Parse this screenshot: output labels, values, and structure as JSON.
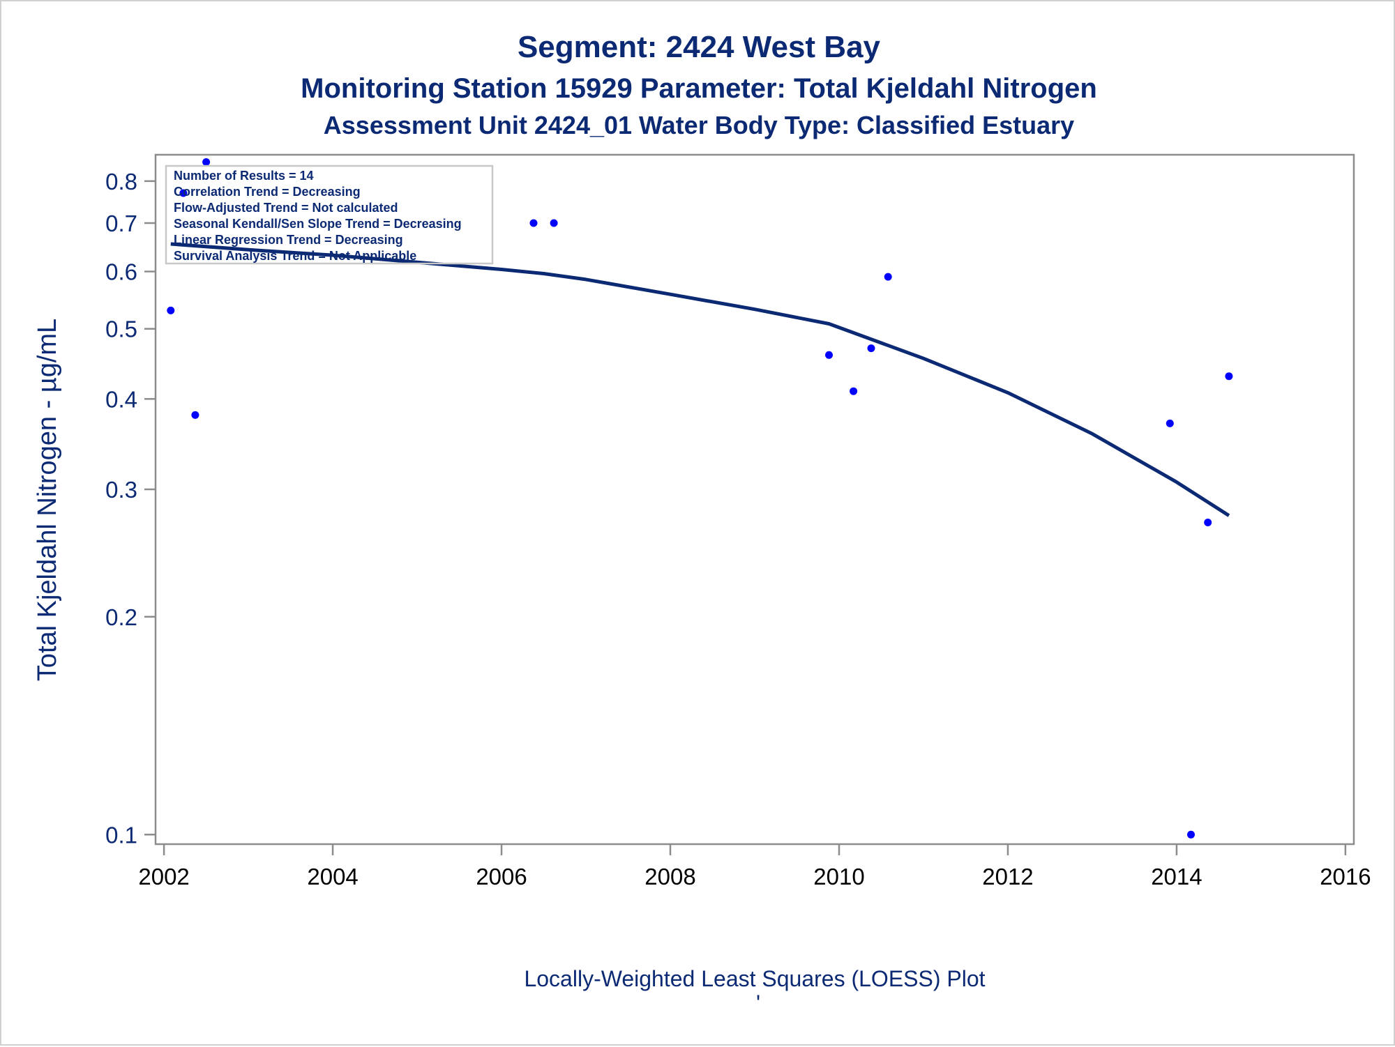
{
  "colors": {
    "title": "#0c2a74",
    "axis_text": "#0c2a74",
    "points": "#0000ff",
    "curve": "#0c2a74",
    "frame": "#8c8c8c"
  },
  "chart_data": {
    "type": "scatter",
    "title": "Segment: 2424  West Bay",
    "subtitle": "Monitoring Station 15929 Parameter: Total Kjeldahl Nitrogen",
    "subtitle2": "Assessment Unit 2424_01   Water Body Type: Classified Estuary",
    "xlabel": "",
    "ylabel": "Total Kjeldahl Nitrogen -  µg/mL",
    "footnote": "Locally-Weighted Least Squares (LOESS) Plot",
    "footnote_mark": "'",
    "y_scale": "log",
    "xlim": [
      2001.9,
      2016.1
    ],
    "ylim": [
      0.097,
      0.87
    ],
    "x_ticks": [
      2002,
      2004,
      2006,
      2008,
      2010,
      2012,
      2014,
      2016
    ],
    "x_tick_labels": [
      "2002",
      "2004",
      "2006",
      "2008",
      "2010",
      "2012",
      "2014",
      "2016"
    ],
    "y_ticks": [
      0.1,
      0.2,
      0.3,
      0.4,
      0.5,
      0.6,
      0.7,
      0.8
    ],
    "y_tick_labels": [
      "0.1",
      "0.2",
      "0.3",
      "0.4",
      "0.5",
      "0.6",
      "0.7",
      "0.8"
    ],
    "grid": false,
    "legend_position": "top-left",
    "stats_lines": [
      "Number of Results = 14",
      "Correlation Trend = Decreasing",
      "Flow-Adjusted Trend = Not calculated",
      "Seasonal Kendall/Sen Slope Trend = Decreasing",
      "Linear Regression Trend = Decreasing",
      "Survival Analysis Trend = Not Applicable"
    ],
    "points": [
      {
        "x": 2002.08,
        "y": 0.53
      },
      {
        "x": 2002.23,
        "y": 0.77
      },
      {
        "x": 2002.37,
        "y": 0.38
      },
      {
        "x": 2002.5,
        "y": 0.85
      },
      {
        "x": 2006.38,
        "y": 0.7
      },
      {
        "x": 2006.62,
        "y": 0.7
      },
      {
        "x": 2009.88,
        "y": 0.46
      },
      {
        "x": 2010.17,
        "y": 0.41
      },
      {
        "x": 2010.38,
        "y": 0.47
      },
      {
        "x": 2010.58,
        "y": 0.59
      },
      {
        "x": 2013.92,
        "y": 0.37
      },
      {
        "x": 2014.17,
        "y": 0.1
      },
      {
        "x": 2014.37,
        "y": 0.27
      },
      {
        "x": 2014.62,
        "y": 0.43
      }
    ],
    "loess": [
      {
        "x": 2002.08,
        "y": 0.655
      },
      {
        "x": 2003.0,
        "y": 0.643
      },
      {
        "x": 2004.0,
        "y": 0.632
      },
      {
        "x": 2005.0,
        "y": 0.618
      },
      {
        "x": 2006.0,
        "y": 0.604
      },
      {
        "x": 2006.5,
        "y": 0.596
      },
      {
        "x": 2007.0,
        "y": 0.585
      },
      {
        "x": 2008.0,
        "y": 0.558
      },
      {
        "x": 2009.0,
        "y": 0.532
      },
      {
        "x": 2009.88,
        "y": 0.508
      },
      {
        "x": 2010.5,
        "y": 0.478
      },
      {
        "x": 2011.0,
        "y": 0.455
      },
      {
        "x": 2012.0,
        "y": 0.408
      },
      {
        "x": 2013.0,
        "y": 0.358
      },
      {
        "x": 2014.0,
        "y": 0.307
      },
      {
        "x": 2014.62,
        "y": 0.276
      }
    ]
  }
}
